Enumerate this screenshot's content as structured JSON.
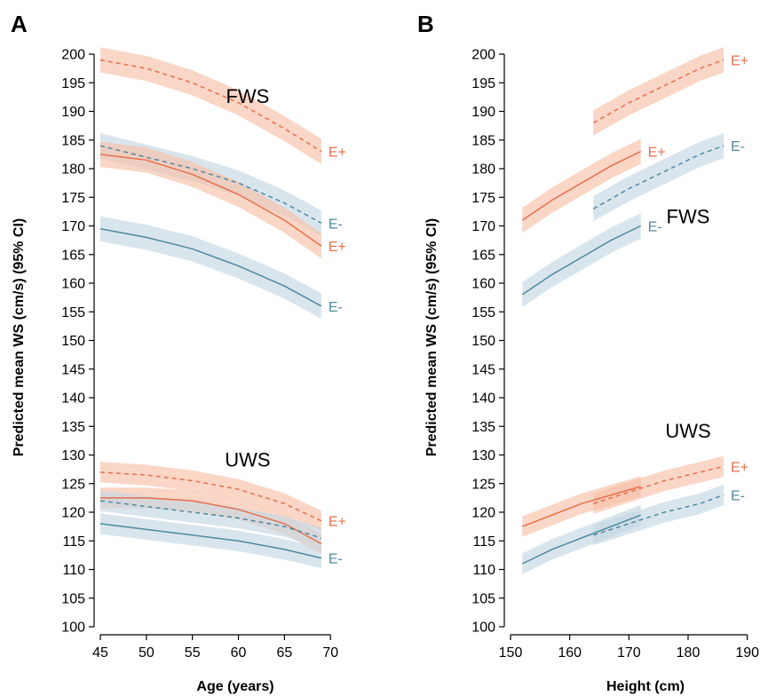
{
  "colors": {
    "e_plus": "#e4704d",
    "e_minus": "#4f8aa0",
    "band_e_plus": "#f7c0a8",
    "band_e_minus": "#c5d7e3",
    "axis": "#000000"
  },
  "chart_data": [
    {
      "panel": "A",
      "type": "line",
      "xlabel": "Age (years)",
      "ylabel": "Predicted mean WS (cm/s) (95% CI)",
      "xlim": [
        45,
        72
      ],
      "ylim": [
        100,
        200
      ],
      "xticks": [
        45,
        50,
        55,
        60,
        65,
        70
      ],
      "yticks": [
        100,
        105,
        110,
        115,
        120,
        125,
        130,
        135,
        140,
        145,
        150,
        155,
        160,
        165,
        170,
        175,
        180,
        185,
        190,
        195,
        200
      ],
      "grid": false,
      "group_labels": [
        {
          "text": "FWS",
          "x": 61,
          "y": 191.5
        },
        {
          "text": "UWS",
          "x": 61,
          "y": 128
        }
      ],
      "series": [
        {
          "group": "FWS",
          "label": "E+",
          "color": "e_plus",
          "dash": true,
          "x": [
            45,
            50,
            55,
            60,
            65,
            69
          ],
          "y": [
            199,
            197.5,
            195,
            191.5,
            187,
            183
          ],
          "ci": 2.2
        },
        {
          "group": "FWS",
          "label": "E-",
          "color": "e_minus",
          "dash": true,
          "x": [
            45,
            50,
            55,
            60,
            65,
            69
          ],
          "y": [
            184,
            182,
            180,
            177.5,
            174,
            170.5
          ],
          "ci": 2.2
        },
        {
          "group": "FWS",
          "label": "E+",
          "color": "e_plus",
          "dash": false,
          "x": [
            45,
            50,
            55,
            60,
            65,
            69
          ],
          "y": [
            182.5,
            181.5,
            179,
            175.5,
            171,
            166.5
          ],
          "ci": 2.2
        },
        {
          "group": "FWS",
          "label": "E-",
          "color": "e_minus",
          "dash": false,
          "x": [
            45,
            50,
            55,
            60,
            65,
            69
          ],
          "y": [
            169.5,
            168,
            166,
            163,
            159.5,
            156
          ],
          "ci": 2.2
        },
        {
          "group": "UWS",
          "label": "E+",
          "color": "e_plus",
          "dash": true,
          "x": [
            45,
            50,
            55,
            60,
            65,
            69
          ],
          "y": [
            127,
            126.5,
            125.5,
            124,
            121.5,
            118.5
          ],
          "ci": 1.8
        },
        {
          "group": "UWS",
          "label": "",
          "color": "e_plus",
          "dash": false,
          "x": [
            45,
            50,
            55,
            60,
            65,
            69
          ],
          "y": [
            122.5,
            122.5,
            122,
            120.5,
            118,
            114.5
          ],
          "ci": 1.8
        },
        {
          "group": "UWS",
          "label": "",
          "color": "e_minus",
          "dash": true,
          "x": [
            45,
            50,
            55,
            60,
            65,
            69
          ],
          "y": [
            122,
            121,
            120,
            119,
            117.5,
            115.5
          ],
          "ci": 1.8
        },
        {
          "group": "UWS",
          "label": "E-",
          "color": "e_minus",
          "dash": false,
          "x": [
            45,
            50,
            55,
            60,
            65,
            69
          ],
          "y": [
            118,
            117,
            116,
            115,
            113.5,
            112
          ],
          "ci": 1.8
        }
      ]
    },
    {
      "panel": "B",
      "type": "line",
      "xlabel": "Height (cm)",
      "ylabel": "Predicted mean WS (cm/s) (95% CI)",
      "xlim": [
        150,
        192
      ],
      "ylim": [
        100,
        200
      ],
      "xticks": [
        150,
        160,
        170,
        180,
        190
      ],
      "yticks": [
        100,
        105,
        110,
        115,
        120,
        125,
        130,
        135,
        140,
        145,
        150,
        155,
        160,
        165,
        170,
        175,
        180,
        185,
        190,
        195,
        200
      ],
      "grid": false,
      "group_labels": [
        {
          "text": "FWS",
          "x": 180,
          "y": 170.5
        },
        {
          "text": "UWS",
          "x": 180,
          "y": 133
        }
      ],
      "series": [
        {
          "group": "FWS",
          "label": "E+",
          "color": "e_plus",
          "dash": true,
          "x": [
            164,
            170,
            176,
            182,
            186
          ],
          "y": [
            188,
            191.5,
            194.5,
            197.5,
            199
          ],
          "ci": 2.2
        },
        {
          "group": "FWS",
          "label": "E+",
          "color": "e_plus",
          "dash": false,
          "x": [
            152,
            157,
            162,
            167,
            172
          ],
          "y": [
            171,
            174.5,
            177.5,
            180.5,
            183
          ],
          "ci": 2.2
        },
        {
          "group": "FWS",
          "label": "E-",
          "color": "e_minus",
          "dash": true,
          "x": [
            164,
            170,
            176,
            182,
            186
          ],
          "y": [
            173,
            176.5,
            179.5,
            182.5,
            184
          ],
          "ci": 2.2
        },
        {
          "group": "FWS",
          "label": "E-",
          "color": "e_minus",
          "dash": false,
          "x": [
            152,
            157,
            162,
            167,
            172
          ],
          "y": [
            158,
            161.5,
            164.5,
            167.5,
            170
          ],
          "ci": 2.2
        },
        {
          "group": "UWS",
          "label": "E+",
          "color": "e_plus",
          "dash": true,
          "x": [
            164,
            170,
            176,
            182,
            186
          ],
          "y": [
            121.5,
            123.5,
            125.5,
            127,
            128
          ],
          "ci": 1.8
        },
        {
          "group": "UWS",
          "label": "",
          "color": "e_plus",
          "dash": false,
          "x": [
            152,
            157,
            162,
            167,
            172
          ],
          "y": [
            117.5,
            119.5,
            121.5,
            123,
            124.5
          ],
          "ci": 1.8
        },
        {
          "group": "UWS",
          "label": "E-",
          "color": "e_minus",
          "dash": true,
          "x": [
            164,
            170,
            176,
            182,
            186
          ],
          "y": [
            116,
            118,
            120,
            121.5,
            123
          ],
          "ci": 1.8
        },
        {
          "group": "UWS",
          "label": "",
          "color": "e_minus",
          "dash": false,
          "x": [
            152,
            157,
            162,
            167,
            172
          ],
          "y": [
            111,
            113.5,
            115.5,
            117.5,
            119.5
          ],
          "ci": 1.8
        }
      ]
    }
  ]
}
